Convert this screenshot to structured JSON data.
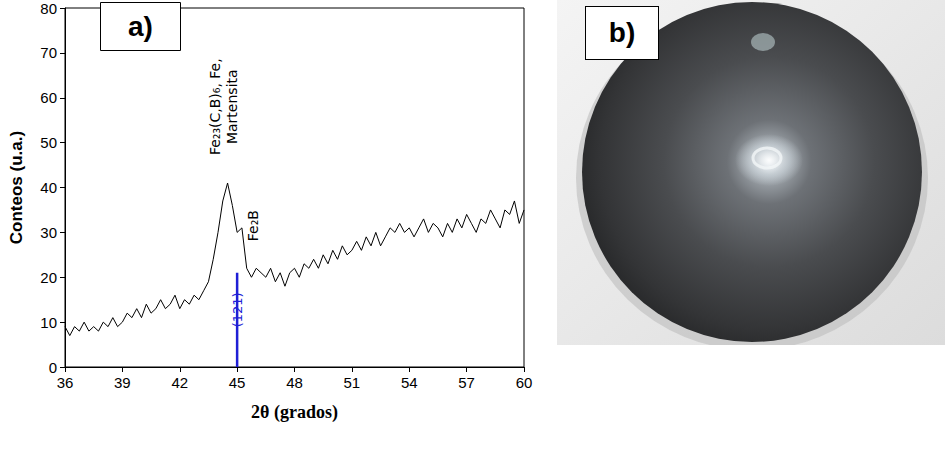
{
  "chart_data": {
    "type": "line",
    "panel_label": "a)",
    "x_label": "2θ (grados)",
    "y_label": "Conteos (u.a.)",
    "x": [
      36,
      36.25,
      36.5,
      36.75,
      37,
      37.25,
      37.5,
      37.75,
      38,
      38.25,
      38.5,
      38.75,
      39,
      39.25,
      39.5,
      39.75,
      40,
      40.25,
      40.5,
      40.75,
      41,
      41.25,
      41.5,
      41.75,
      42,
      42.25,
      42.5,
      42.75,
      43,
      43.25,
      43.5,
      43.75,
      44,
      44.25,
      44.5,
      44.75,
      45,
      45.25,
      45.5,
      45.75,
      46,
      46.25,
      46.5,
      46.75,
      47,
      47.25,
      47.5,
      47.75,
      48,
      48.25,
      48.5,
      48.75,
      49,
      49.25,
      49.5,
      49.75,
      50,
      50.25,
      50.5,
      50.75,
      51,
      51.25,
      51.5,
      51.75,
      52,
      52.25,
      52.5,
      52.75,
      53,
      53.25,
      53.5,
      53.75,
      54,
      54.25,
      54.5,
      54.75,
      55,
      55.25,
      55.5,
      55.75,
      56,
      56.25,
      56.5,
      56.75,
      57,
      57.25,
      57.5,
      57.75,
      58,
      58.25,
      58.5,
      58.75,
      59,
      59.25,
      59.5,
      59.75,
      60
    ],
    "series": [
      {
        "color": "#000000",
        "values": [
          9,
          7,
          9,
          8,
          10,
          8,
          9,
          8,
          10,
          9,
          11,
          9,
          10,
          12,
          11,
          13,
          11,
          14,
          12,
          13,
          15,
          13,
          14,
          16,
          13,
          15,
          14,
          16,
          15,
          17,
          19,
          24,
          30,
          37,
          41,
          36,
          30,
          31,
          22,
          20,
          22,
          21,
          20,
          22,
          19,
          21,
          18,
          21,
          22,
          20,
          23,
          22,
          24,
          22,
          25,
          23,
          26,
          24,
          27,
          25,
          26,
          28,
          26,
          29,
          27,
          30,
          27,
          29,
          31,
          30,
          32,
          30,
          31,
          29,
          31,
          33,
          30,
          32,
          31,
          29,
          32,
          30,
          33,
          31,
          34,
          32,
          30,
          33,
          32,
          35,
          33,
          31,
          35,
          34,
          37,
          32,
          35
        ]
      }
    ],
    "xlim": [
      36,
      60
    ],
    "xticks": [
      36,
      39,
      42,
      45,
      48,
      51,
      54,
      57,
      60
    ],
    "ylim": [
      0,
      80
    ],
    "yticks": [
      0,
      10,
      20,
      30,
      40,
      50,
      60,
      70,
      80
    ],
    "grid": false,
    "annotations": [
      {
        "text": "Fe₂₃(C,B)₆, Fe,\nMartensita",
        "x": 44.3,
        "y": 58,
        "color": "#000000"
      },
      {
        "text": "Fe₂B",
        "x": 45.85,
        "y": 31.5,
        "color": "#000000"
      }
    ],
    "reference_lines": [
      {
        "x": 45,
        "y": [
          0,
          21
        ],
        "label": "(121)",
        "color": "#1f1fd6"
      }
    ]
  },
  "photo": {
    "panel_label": "b)"
  }
}
